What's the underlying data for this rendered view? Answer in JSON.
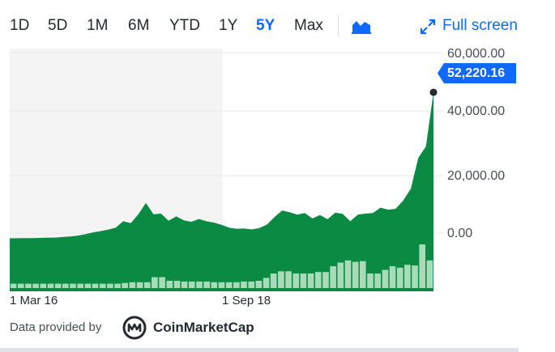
{
  "toolbar": {
    "ranges": [
      {
        "label": "1D",
        "active": false
      },
      {
        "label": "5D",
        "active": false
      },
      {
        "label": "1M",
        "active": false
      },
      {
        "label": "6M",
        "active": false
      },
      {
        "label": "YTD",
        "active": false
      },
      {
        "label": "1Y",
        "active": false
      },
      {
        "label": "5Y",
        "active": true
      },
      {
        "label": "Max",
        "active": false
      }
    ],
    "chart_type_icon": "mountain-chart-icon",
    "fullscreen_icon": "expand-arrows-icon",
    "fullscreen_label": "Full screen"
  },
  "colors": {
    "accent": "#0f69ff",
    "area": "#0b8a43",
    "volume": "#a8dcb9",
    "shaded_region": "#f4f4f4",
    "price_tag": "#0f69ff"
  },
  "current_price": "52,220.16",
  "chart_data": {
    "type": "area",
    "y_ticks": [
      "60,000.00",
      "40,000.00",
      "20,000.00",
      "0.00"
    ],
    "y_tick_values": [
      60000,
      40000,
      20000,
      0
    ],
    "x_tick_labels": [
      "1 Mar 16",
      "1 Sep 18"
    ],
    "price_series": [
      430,
      450,
      480,
      520,
      580,
      620,
      700,
      900,
      1100,
      1400,
      1900,
      2500,
      3000,
      3500,
      4200,
      6500,
      5800,
      9000,
      13000,
      9000,
      9200,
      6700,
      8200,
      6800,
      6300,
      7300,
      6500,
      6000,
      5200,
      4200,
      3800,
      3900,
      3600,
      4100,
      5300,
      8000,
      10300,
      9700,
      8800,
      9400,
      7500,
      8700,
      7200,
      9500,
      9100,
      6500,
      8800,
      9200,
      9400,
      11300,
      10600,
      10900,
      13800,
      18000,
      29000,
      33000,
      52220
    ],
    "volume_levels": [
      0.06,
      0.06,
      0.06,
      0.06,
      0.06,
      0.06,
      0.06,
      0.06,
      0.06,
      0.06,
      0.06,
      0.06,
      0.06,
      0.06,
      0.06,
      0.07,
      0.08,
      0.08,
      0.08,
      0.15,
      0.15,
      0.1,
      0.1,
      0.09,
      0.09,
      0.09,
      0.09,
      0.08,
      0.08,
      0.08,
      0.08,
      0.09,
      0.09,
      0.1,
      0.14,
      0.2,
      0.23,
      0.23,
      0.2,
      0.2,
      0.2,
      0.22,
      0.22,
      0.3,
      0.35,
      0.38,
      0.36,
      0.37,
      0.2,
      0.2,
      0.25,
      0.3,
      0.28,
      0.32,
      0.31,
      0.6,
      0.38
    ],
    "shaded_until_fraction": 0.49
  },
  "footer": {
    "provided_by": "Data provided by",
    "provider_name": "CoinMarketCap",
    "provider_logo": "coinmarketcap-logo"
  }
}
